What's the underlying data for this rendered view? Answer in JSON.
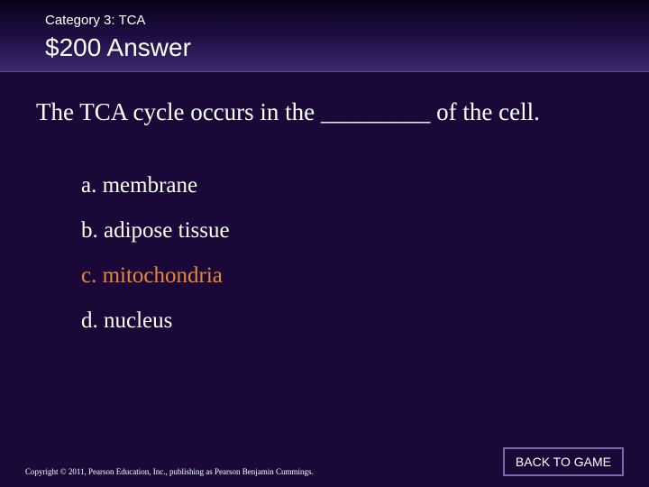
{
  "header": {
    "category": "Category 3: TCA",
    "title": "$200 Answer"
  },
  "question": "The TCA cycle occurs in the _________ of the cell.",
  "options": [
    {
      "label": "a. membrane",
      "highlight": false
    },
    {
      "label": "b. adipose tissue",
      "highlight": false
    },
    {
      "label": "c. mitochondria",
      "highlight": true
    },
    {
      "label": "d. nucleus",
      "highlight": false
    }
  ],
  "footer": {
    "copyright": "Copyright © 2011, Pearson Education, Inc., publishing as Pearson Benjamin Cummings.",
    "back_label": "BACK TO GAME"
  },
  "colors": {
    "background": "#1a0838",
    "header_gradient_top": "#0a0218",
    "header_gradient_mid": "#1d0d42",
    "header_gradient_bottom": "#3d2a6e",
    "text": "#ffffff",
    "highlight": "#e8863a",
    "button_border": "#7a6aaa"
  }
}
